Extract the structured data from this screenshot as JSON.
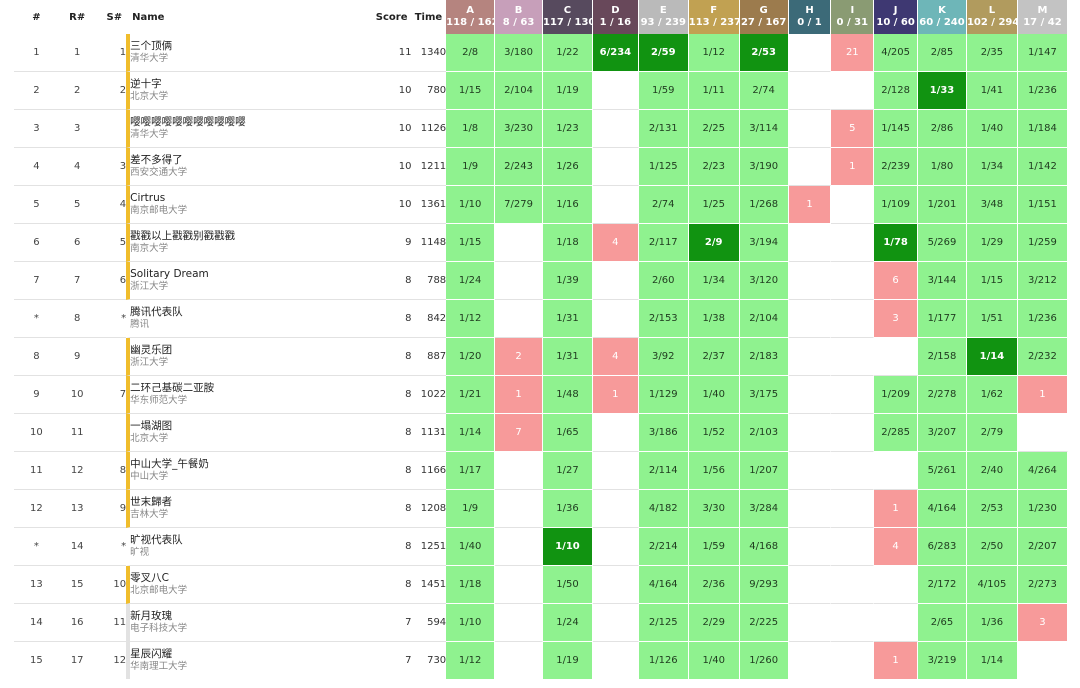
{
  "header": {
    "rank": "#",
    "real_rank": "R#",
    "school_rank": "S#",
    "name": "Name",
    "score": "Score",
    "time": "Time"
  },
  "problems": [
    {
      "label": "A",
      "stat": "118 / 162",
      "color": "#b5847f"
    },
    {
      "label": "B",
      "stat": "8 / 63",
      "color": "#c79fba"
    },
    {
      "label": "C",
      "stat": "117 / 130",
      "color": "#574a5e"
    },
    {
      "label": "D",
      "stat": "1 / 16",
      "color": "#68485a"
    },
    {
      "label": "E",
      "stat": "93 / 239",
      "color": "#bababa"
    },
    {
      "label": "F",
      "stat": "113 / 237",
      "color": "#c1a152"
    },
    {
      "label": "G",
      "stat": "27 / 167",
      "color": "#9c7b4d"
    },
    {
      "label": "H",
      "stat": "0 / 1",
      "color": "#3c6a78"
    },
    {
      "label": "I",
      "stat": "0 / 31",
      "color": "#8a9b73"
    },
    {
      "label": "J",
      "stat": "10 / 60",
      "color": "#3e3872"
    },
    {
      "label": "K",
      "stat": "60 / 240",
      "color": "#6eb6b8"
    },
    {
      "label": "L",
      "stat": "102 / 294",
      "color": "#b19b5e"
    },
    {
      "label": "M",
      "stat": "17 / 42",
      "color": "#c3c3c3"
    }
  ],
  "rows": [
    {
      "rank": "1",
      "rrank": "1",
      "srank": "1",
      "name": "三个顶俩",
      "school": "清华大学",
      "score": "11",
      "time": "1340",
      "bar": "gold",
      "cells": [
        [
          "ac",
          "2/8"
        ],
        [
          "ac",
          "3/180"
        ],
        [
          "ac",
          "1/22"
        ],
        [
          "fb",
          "6/234"
        ],
        [
          "fb",
          "2/59"
        ],
        [
          "ac",
          "1/12"
        ],
        [
          "fb",
          "2/53"
        ],
        [
          "em",
          ""
        ],
        [
          "rj",
          "21"
        ],
        [
          "ac",
          "4/205"
        ],
        [
          "ac",
          "2/85"
        ],
        [
          "ac",
          "2/35"
        ],
        [
          "ac",
          "1/147"
        ]
      ]
    },
    {
      "rank": "2",
      "rrank": "2",
      "srank": "2",
      "name": "逆十字",
      "school": "北京大学",
      "score": "10",
      "time": "780",
      "bar": "gold",
      "cells": [
        [
          "ac",
          "1/15"
        ],
        [
          "ac",
          "2/104"
        ],
        [
          "ac",
          "1/19"
        ],
        [
          "em",
          ""
        ],
        [
          "ac",
          "1/59"
        ],
        [
          "ac",
          "1/11"
        ],
        [
          "ac",
          "2/74"
        ],
        [
          "em",
          ""
        ],
        [
          "em",
          ""
        ],
        [
          "ac",
          "2/128"
        ],
        [
          "fb",
          "1/33"
        ],
        [
          "ac",
          "1/41"
        ],
        [
          "ac",
          "1/236"
        ]
      ]
    },
    {
      "rank": "3",
      "rrank": "3",
      "srank": "",
      "name": "嘤嘤嘤嘤嘤嘤嘤嘤嘤嘤嘤",
      "school": "清华大学",
      "score": "10",
      "time": "1126",
      "bar": "gold",
      "cells": [
        [
          "ac",
          "1/8"
        ],
        [
          "ac",
          "3/230"
        ],
        [
          "ac",
          "1/23"
        ],
        [
          "em",
          ""
        ],
        [
          "ac",
          "2/131"
        ],
        [
          "ac",
          "2/25"
        ],
        [
          "ac",
          "3/114"
        ],
        [
          "em",
          ""
        ],
        [
          "rj",
          "5"
        ],
        [
          "ac",
          "1/145"
        ],
        [
          "ac",
          "2/86"
        ],
        [
          "ac",
          "1/40"
        ],
        [
          "ac",
          "1/184"
        ]
      ]
    },
    {
      "rank": "4",
      "rrank": "4",
      "srank": "3",
      "name": "差不多得了",
      "school": "西安交通大学",
      "score": "10",
      "time": "1211",
      "bar": "gold",
      "cells": [
        [
          "ac",
          "1/9"
        ],
        [
          "ac",
          "2/243"
        ],
        [
          "ac",
          "1/26"
        ],
        [
          "em",
          ""
        ],
        [
          "ac",
          "1/125"
        ],
        [
          "ac",
          "2/23"
        ],
        [
          "ac",
          "3/190"
        ],
        [
          "em",
          ""
        ],
        [
          "rj",
          "1"
        ],
        [
          "ac",
          "2/239"
        ],
        [
          "ac",
          "1/80"
        ],
        [
          "ac",
          "1/34"
        ],
        [
          "ac",
          "1/142"
        ]
      ]
    },
    {
      "rank": "5",
      "rrank": "5",
      "srank": "4",
      "name": "Cirtrus",
      "school": "南京邮电大学",
      "score": "10",
      "time": "1361",
      "bar": "gold",
      "cells": [
        [
          "ac",
          "1/10"
        ],
        [
          "ac",
          "7/279"
        ],
        [
          "ac",
          "1/16"
        ],
        [
          "em",
          ""
        ],
        [
          "ac",
          "2/74"
        ],
        [
          "ac",
          "1/25"
        ],
        [
          "ac",
          "1/268"
        ],
        [
          "rj",
          "1"
        ],
        [
          "em",
          ""
        ],
        [
          "ac",
          "1/109"
        ],
        [
          "ac",
          "1/201"
        ],
        [
          "ac",
          "3/48"
        ],
        [
          "ac",
          "1/151"
        ]
      ]
    },
    {
      "rank": "6",
      "rrank": "6",
      "srank": "5",
      "name": "戳戳以上戳戳别戳戳戳",
      "school": "南京大学",
      "score": "9",
      "time": "1148",
      "bar": "gold",
      "cells": [
        [
          "ac",
          "1/15"
        ],
        [
          "em",
          ""
        ],
        [
          "ac",
          "1/18"
        ],
        [
          "rj",
          "4"
        ],
        [
          "ac",
          "2/117"
        ],
        [
          "fb",
          "2/9"
        ],
        [
          "ac",
          "3/194"
        ],
        [
          "em",
          ""
        ],
        [
          "em",
          ""
        ],
        [
          "fb",
          "1/78"
        ],
        [
          "ac",
          "5/269"
        ],
        [
          "ac",
          "1/29"
        ],
        [
          "ac",
          "1/259"
        ]
      ]
    },
    {
      "rank": "7",
      "rrank": "7",
      "srank": "6",
      "name": "Solitary Dream",
      "school": "浙江大学",
      "score": "8",
      "time": "788",
      "bar": "gold",
      "cells": [
        [
          "ac",
          "1/24"
        ],
        [
          "em",
          ""
        ],
        [
          "ac",
          "1/39"
        ],
        [
          "em",
          ""
        ],
        [
          "ac",
          "2/60"
        ],
        [
          "ac",
          "1/34"
        ],
        [
          "ac",
          "3/120"
        ],
        [
          "em",
          ""
        ],
        [
          "em",
          ""
        ],
        [
          "rj",
          "6"
        ],
        [
          "ac",
          "3/144"
        ],
        [
          "ac",
          "1/15"
        ],
        [
          "ac",
          "3/212"
        ]
      ]
    },
    {
      "rank": "*",
      "rrank": "8",
      "srank": "*",
      "name": "腾讯代表队",
      "school": "腾讯",
      "score": "8",
      "time": "842",
      "bar": "none",
      "cells": [
        [
          "ac",
          "1/12"
        ],
        [
          "em",
          ""
        ],
        [
          "ac",
          "1/31"
        ],
        [
          "em",
          ""
        ],
        [
          "ac",
          "2/153"
        ],
        [
          "ac",
          "1/38"
        ],
        [
          "ac",
          "2/104"
        ],
        [
          "em",
          ""
        ],
        [
          "em",
          ""
        ],
        [
          "rj",
          "3"
        ],
        [
          "ac",
          "1/177"
        ],
        [
          "ac",
          "1/51"
        ],
        [
          "ac",
          "1/236"
        ]
      ]
    },
    {
      "rank": "8",
      "rrank": "9",
      "srank": "",
      "name": "幽灵乐团",
      "school": "浙江大学",
      "score": "8",
      "time": "887",
      "bar": "gold",
      "cells": [
        [
          "ac",
          "1/20"
        ],
        [
          "rj",
          "2"
        ],
        [
          "ac",
          "1/31"
        ],
        [
          "rj",
          "4"
        ],
        [
          "ac",
          "3/92"
        ],
        [
          "ac",
          "2/37"
        ],
        [
          "ac",
          "2/183"
        ],
        [
          "em",
          ""
        ],
        [
          "em",
          ""
        ],
        [
          "em",
          ""
        ],
        [
          "ac",
          "2/158"
        ],
        [
          "fb",
          "1/14"
        ],
        [
          "ac",
          "2/232"
        ]
      ]
    },
    {
      "rank": "9",
      "rrank": "10",
      "srank": "7",
      "name": "二环己基碳二亚胺",
      "school": "华东师范大学",
      "score": "8",
      "time": "1022",
      "bar": "gold",
      "cells": [
        [
          "ac",
          "1/21"
        ],
        [
          "rj",
          "1"
        ],
        [
          "ac",
          "1/48"
        ],
        [
          "rj",
          "1"
        ],
        [
          "ac",
          "1/129"
        ],
        [
          "ac",
          "1/40"
        ],
        [
          "ac",
          "3/175"
        ],
        [
          "em",
          ""
        ],
        [
          "em",
          ""
        ],
        [
          "ac",
          "1/209"
        ],
        [
          "ac",
          "2/278"
        ],
        [
          "ac",
          "1/62"
        ],
        [
          "rj",
          "1"
        ]
      ]
    },
    {
      "rank": "10",
      "rrank": "11",
      "srank": "",
      "name": "一塌湖图",
      "school": "北京大学",
      "score": "8",
      "time": "1131",
      "bar": "gold",
      "cells": [
        [
          "ac",
          "1/14"
        ],
        [
          "rj",
          "7"
        ],
        [
          "ac",
          "1/65"
        ],
        [
          "em",
          ""
        ],
        [
          "ac",
          "3/186"
        ],
        [
          "ac",
          "1/52"
        ],
        [
          "ac",
          "2/103"
        ],
        [
          "em",
          ""
        ],
        [
          "em",
          ""
        ],
        [
          "ac",
          "2/285"
        ],
        [
          "ac",
          "3/207"
        ],
        [
          "ac",
          "2/79"
        ],
        [
          "em",
          ""
        ]
      ]
    },
    {
      "rank": "11",
      "rrank": "12",
      "srank": "8",
      "name": "中山大学_午餐奶",
      "school": "中山大学",
      "score": "8",
      "time": "1166",
      "bar": "gold",
      "cells": [
        [
          "ac",
          "1/17"
        ],
        [
          "em",
          ""
        ],
        [
          "ac",
          "1/27"
        ],
        [
          "em",
          ""
        ],
        [
          "ac",
          "2/114"
        ],
        [
          "ac",
          "1/56"
        ],
        [
          "ac",
          "1/207"
        ],
        [
          "em",
          ""
        ],
        [
          "em",
          ""
        ],
        [
          "em",
          ""
        ],
        [
          "ac",
          "5/261"
        ],
        [
          "ac",
          "2/40"
        ],
        [
          "ac",
          "4/264"
        ]
      ]
    },
    {
      "rank": "12",
      "rrank": "13",
      "srank": "9",
      "name": "世末歸者",
      "school": "吉林大学",
      "score": "8",
      "time": "1208",
      "bar": "gold",
      "cells": [
        [
          "ac",
          "1/9"
        ],
        [
          "em",
          ""
        ],
        [
          "ac",
          "1/36"
        ],
        [
          "em",
          ""
        ],
        [
          "ac",
          "4/182"
        ],
        [
          "ac",
          "3/30"
        ],
        [
          "ac",
          "3/284"
        ],
        [
          "em",
          ""
        ],
        [
          "em",
          ""
        ],
        [
          "rj",
          "1"
        ],
        [
          "ac",
          "4/164"
        ],
        [
          "ac",
          "2/53"
        ],
        [
          "ac",
          "1/230"
        ]
      ]
    },
    {
      "rank": "*",
      "rrank": "14",
      "srank": "*",
      "name": "旷视代表队",
      "school": "旷视",
      "score": "8",
      "time": "1251",
      "bar": "none",
      "cells": [
        [
          "ac",
          "1/40"
        ],
        [
          "em",
          ""
        ],
        [
          "fb",
          "1/10"
        ],
        [
          "em",
          ""
        ],
        [
          "ac",
          "2/214"
        ],
        [
          "ac",
          "1/59"
        ],
        [
          "ac",
          "4/168"
        ],
        [
          "em",
          ""
        ],
        [
          "em",
          ""
        ],
        [
          "rj",
          "4"
        ],
        [
          "ac",
          "6/283"
        ],
        [
          "ac",
          "2/50"
        ],
        [
          "ac",
          "2/207"
        ]
      ]
    },
    {
      "rank": "13",
      "rrank": "15",
      "srank": "10",
      "name": "零叉八C",
      "school": "北京邮电大学",
      "score": "8",
      "time": "1451",
      "bar": "gold",
      "cells": [
        [
          "ac",
          "1/18"
        ],
        [
          "em",
          ""
        ],
        [
          "ac",
          "1/50"
        ],
        [
          "em",
          ""
        ],
        [
          "ac",
          "4/164"
        ],
        [
          "ac",
          "2/36"
        ],
        [
          "ac",
          "9/293"
        ],
        [
          "em",
          ""
        ],
        [
          "em",
          ""
        ],
        [
          "em",
          ""
        ],
        [
          "ac",
          "2/172"
        ],
        [
          "ac",
          "4/105"
        ],
        [
          "ac",
          "2/273"
        ]
      ]
    },
    {
      "rank": "14",
      "rrank": "16",
      "srank": "11",
      "name": "新月玫瑰",
      "school": "电子科技大学",
      "score": "7",
      "time": "594",
      "bar": "grey",
      "cells": [
        [
          "ac",
          "1/10"
        ],
        [
          "em",
          ""
        ],
        [
          "ac",
          "1/24"
        ],
        [
          "em",
          ""
        ],
        [
          "ac",
          "2/125"
        ],
        [
          "ac",
          "2/29"
        ],
        [
          "ac",
          "2/225"
        ],
        [
          "em",
          ""
        ],
        [
          "em",
          ""
        ],
        [
          "em",
          ""
        ],
        [
          "ac",
          "2/65"
        ],
        [
          "ac",
          "1/36"
        ],
        [
          "rj",
          "3"
        ]
      ]
    },
    {
      "rank": "15",
      "rrank": "17",
      "srank": "12",
      "name": "星辰闪耀",
      "school": "华南理工大学",
      "score": "7",
      "time": "730",
      "bar": "grey",
      "cells": [
        [
          "ac",
          "1/12"
        ],
        [
          "em",
          ""
        ],
        [
          "ac",
          "1/19"
        ],
        [
          "em",
          ""
        ],
        [
          "ac",
          "1/126"
        ],
        [
          "ac",
          "1/40"
        ],
        [
          "ac",
          "1/260"
        ],
        [
          "em",
          ""
        ],
        [
          "em",
          ""
        ],
        [
          "rj",
          "1"
        ],
        [
          "ac",
          "3/219"
        ],
        [
          "ac",
          "1/14"
        ],
        [
          "em",
          ""
        ]
      ]
    }
  ]
}
